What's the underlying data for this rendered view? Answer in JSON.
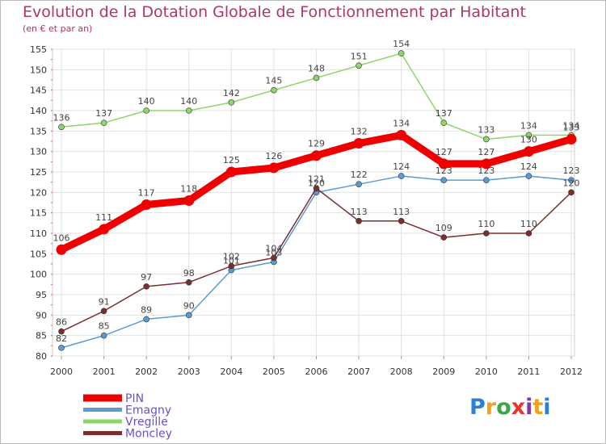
{
  "page": {
    "title": "Evolution de la Dotation Globale de Fonctionnement par Habitant",
    "subtitle": "(en € et par an)"
  },
  "logo": {
    "letters": [
      "P",
      "r",
      "o",
      "x",
      "i",
      "t",
      "i"
    ],
    "colors": [
      "#2b7fd6",
      "#f0a01e",
      "#3aa64a",
      "#e8342f",
      "#7a3fa0",
      "#f0a01e",
      "#2b7fd6"
    ]
  },
  "chart_data": {
    "type": "line",
    "title": "Evolution de la Dotation Globale de Fonctionnement par Habitant",
    "subtitle": "(en € et par an)",
    "xlabel": "",
    "ylabel": "",
    "x": [
      "2000",
      "2001",
      "2002",
      "2003",
      "2004",
      "2005",
      "2006",
      "2007",
      "2008",
      "2009",
      "2010",
      "2011",
      "2012"
    ],
    "ylim": [
      80,
      155
    ],
    "yticks": [
      80,
      85,
      90,
      95,
      100,
      105,
      110,
      115,
      120,
      125,
      130,
      135,
      140,
      145,
      150,
      155
    ],
    "grid": true,
    "legend_position": "bottom-left",
    "series": [
      {
        "name": "PIN",
        "color": "#ee0000",
        "values": [
          106,
          111,
          117,
          118,
          125,
          126,
          129,
          132,
          134,
          127,
          127,
          130,
          133
        ]
      },
      {
        "name": "Emagny",
        "color": "#5b9bd5",
        "values": [
          82,
          85,
          89,
          90,
          101,
          103,
          120,
          122,
          124,
          123,
          123,
          124,
          123
        ]
      },
      {
        "name": "Vregille",
        "color": "#8ed66b",
        "values": [
          136,
          137,
          140,
          140,
          142,
          145,
          148,
          151,
          154,
          137,
          133,
          134,
          134
        ]
      },
      {
        "name": "Moncley",
        "color": "#7b2e2e",
        "values": [
          86,
          91,
          97,
          98,
          102,
          104,
          121,
          113,
          113,
          109,
          110,
          110,
          120
        ]
      }
    ]
  }
}
